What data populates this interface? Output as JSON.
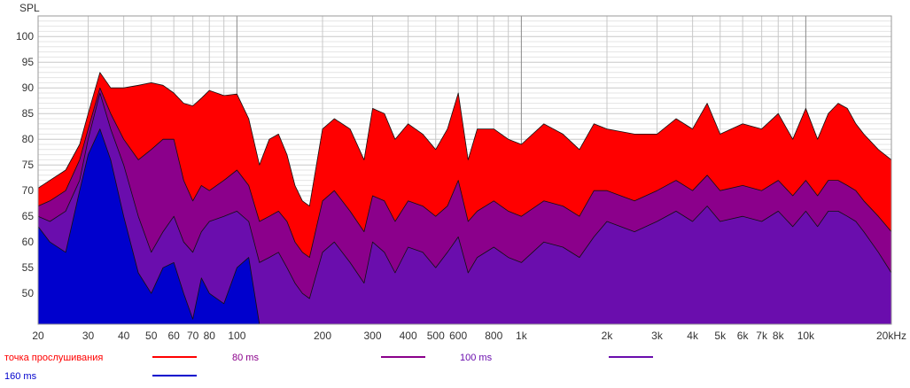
{
  "chart_data": {
    "type": "area",
    "ylabel": "SPL",
    "x_scale": "log",
    "xlim": [
      20,
      20000
    ],
    "ylim": [
      44,
      104
    ],
    "grid": true,
    "x_ticks": [
      {
        "value": 20,
        "label": "20"
      },
      {
        "value": 30,
        "label": "30"
      },
      {
        "value": 40,
        "label": "40"
      },
      {
        "value": 50,
        "label": "50"
      },
      {
        "value": 60,
        "label": "60"
      },
      {
        "value": 70,
        "label": "70"
      },
      {
        "value": 80,
        "label": "80"
      },
      {
        "value": 100,
        "label": "100"
      },
      {
        "value": 200,
        "label": "200"
      },
      {
        "value": 300,
        "label": "300"
      },
      {
        "value": 400,
        "label": "400"
      },
      {
        "value": 500,
        "label": "500"
      },
      {
        "value": 600,
        "label": "600"
      },
      {
        "value": 800,
        "label": "800"
      },
      {
        "value": 1000,
        "label": "1k"
      },
      {
        "value": 2000,
        "label": "2k"
      },
      {
        "value": 3000,
        "label": "3k"
      },
      {
        "value": 4000,
        "label": "4k"
      },
      {
        "value": 5000,
        "label": "5k"
      },
      {
        "value": 6000,
        "label": "6k"
      },
      {
        "value": 7000,
        "label": "7k"
      },
      {
        "value": 8000,
        "label": "8k"
      },
      {
        "value": 10000,
        "label": "10k"
      },
      {
        "value": 20000,
        "label": "20kHz"
      }
    ],
    "y_ticks": [
      50,
      55,
      60,
      65,
      70,
      75,
      80,
      85,
      90,
      95,
      100
    ],
    "x": [
      20,
      22,
      25,
      28,
      30,
      33,
      36,
      40,
      45,
      50,
      55,
      60,
      65,
      70,
      75,
      80,
      90,
      100,
      110,
      120,
      130,
      140,
      150,
      160,
      170,
      180,
      200,
      220,
      250,
      280,
      300,
      330,
      360,
      400,
      450,
      500,
      550,
      600,
      650,
      700,
      800,
      900,
      1000,
      1200,
      1400,
      1600,
      1800,
      2000,
      2500,
      3000,
      3500,
      4000,
      4500,
      5000,
      6000,
      7000,
      8000,
      9000,
      10000,
      11000,
      12000,
      13000,
      14000,
      15000,
      16000,
      18000,
      20000
    ],
    "series": [
      {
        "name": "точка прослушивания",
        "color": "#ff0000",
        "values": [
          70.5,
          72,
          74,
          79,
          85,
          93,
          90,
          90,
          90.5,
          91,
          90.5,
          89,
          87,
          86.5,
          88,
          89.5,
          88.5,
          88.8,
          84,
          75,
          80,
          81,
          77,
          71,
          68,
          67,
          82,
          84,
          82,
          76,
          86,
          85,
          80,
          83,
          81,
          78,
          82,
          89,
          76,
          82,
          82,
          80,
          79,
          83,
          81,
          78,
          83,
          82,
          81,
          81,
          84,
          82,
          87,
          81,
          83,
          82,
          85,
          80,
          86,
          80,
          85,
          87,
          86,
          83,
          81,
          78,
          76
        ]
      },
      {
        "name": "80 ms",
        "color": "#8b008b",
        "values": [
          67,
          68,
          70,
          76,
          82,
          90,
          85,
          80,
          76,
          78,
          80,
          80,
          72,
          68,
          71,
          70,
          72,
          74,
          71,
          64,
          65,
          66,
          64,
          60,
          58,
          57,
          68,
          70,
          66,
          62,
          69,
          68,
          64,
          68,
          67,
          65,
          67,
          72,
          64,
          66,
          68,
          66,
          65,
          68,
          67,
          65,
          70,
          70,
          68,
          70,
          72,
          70,
          73,
          70,
          71,
          70,
          72,
          69,
          72,
          69,
          72,
          72,
          71,
          70,
          68,
          65,
          62
        ]
      },
      {
        "name": "100 ms",
        "color": "#6a0dad",
        "values": [
          65,
          64,
          66,
          72,
          80,
          89,
          82,
          75,
          65,
          58,
          62,
          65,
          60,
          58,
          62,
          64,
          65,
          66,
          64,
          56,
          57,
          58,
          55,
          52,
          50,
          49,
          58,
          60,
          56,
          52,
          60,
          58,
          54,
          59,
          58,
          55,
          58,
          61,
          54,
          57,
          59,
          57,
          56,
          60,
          59,
          57,
          61,
          64,
          62,
          64,
          66,
          64,
          67,
          64,
          65,
          64,
          66,
          63,
          66,
          63,
          66,
          66,
          65,
          64,
          62,
          58,
          54
        ]
      },
      {
        "name": "160 ms",
        "color": "#0000cd",
        "values": [
          63,
          60,
          58,
          70,
          77,
          82,
          76,
          65,
          54,
          50,
          55,
          56,
          50,
          45,
          53,
          50,
          48,
          55,
          57,
          44,
          44,
          44,
          44,
          44,
          44,
          44,
          44,
          44,
          44,
          44,
          44,
          44,
          44,
          44,
          44,
          44,
          44,
          44,
          44,
          44,
          44,
          44,
          44,
          44,
          44,
          44,
          44,
          44,
          44,
          44,
          44,
          44,
          44,
          44,
          44,
          44,
          44,
          44,
          44,
          44,
          44,
          44,
          44,
          44,
          44,
          44,
          44
        ]
      }
    ],
    "legend_position": "bottom",
    "legend_colors": {
      "label_80": "#8b008b",
      "label_100": "#6a0dad",
      "label_160": "#0000cd",
      "label_listen": "#ff0000"
    }
  }
}
